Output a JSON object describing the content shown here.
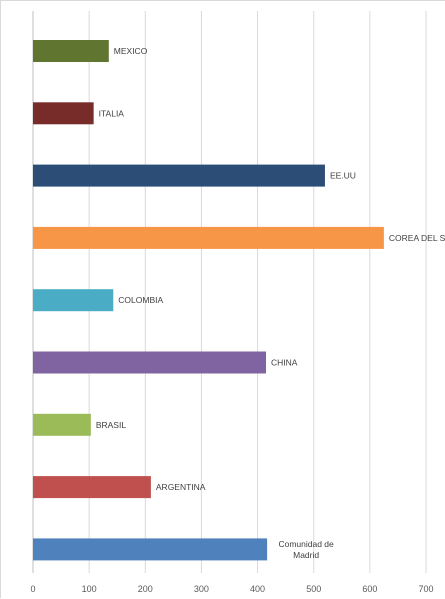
{
  "chart_data": {
    "type": "bar",
    "orientation": "horizontal",
    "title": "",
    "xlabel": "",
    "ylabel": "",
    "xlim": [
      0,
      700
    ],
    "x_ticks": [
      0,
      100,
      200,
      300,
      400,
      500,
      600,
      700
    ],
    "grid": true,
    "legend": "none",
    "categories": [
      "MEXICO",
      "ITALIA",
      "EE.UU",
      "COREA DEL SUR",
      "COLOMBIA",
      "CHINA",
      "BRASIL",
      "ARGENTINA",
      "Comunidad de Madrid"
    ],
    "label_lines": [
      [
        "MEXICO"
      ],
      [
        "ITALIA"
      ],
      [
        "EE.UU"
      ],
      [
        "COREA DEL SUR"
      ],
      [
        "COLOMBIA"
      ],
      [
        "CHINA"
      ],
      [
        "BRASIL"
      ],
      [
        "ARGENTINA"
      ],
      [
        "Comunidad de",
        "Madrid"
      ]
    ],
    "values": [
      135,
      108,
      520,
      625,
      143,
      415,
      103,
      210,
      417
    ],
    "colors": [
      "#5f7530",
      "#772c2a",
      "#2c4d75",
      "#f79646",
      "#4bacc6",
      "#8064a2",
      "#9bbb59",
      "#c0504d",
      "#4f81bd"
    ]
  }
}
